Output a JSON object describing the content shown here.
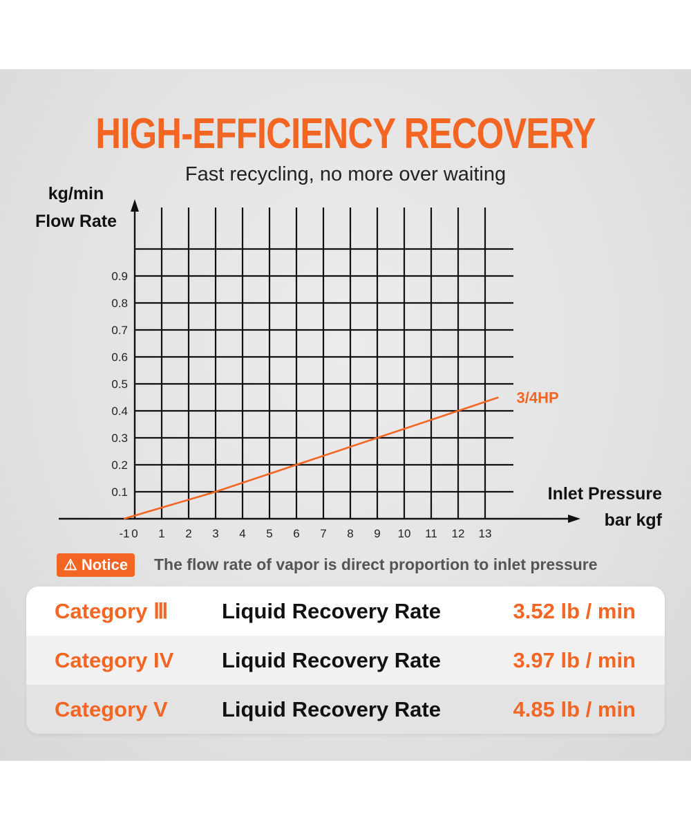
{
  "title": "HIGH-EFFICIENCY RECOVERY",
  "subtitle": "Fast recycling, no more over waiting",
  "chart_data": {
    "type": "line",
    "ylabel_unit": "kg/min",
    "ylabel": "Flow Rate",
    "xlabel": "Inlet Pressure",
    "xlabel_unit": "bar kgf",
    "xlim": [
      -1,
      14
    ],
    "ylim": [
      0,
      1.0
    ],
    "x_ticks": [
      "-1",
      "0",
      "1",
      "2",
      "3",
      "4",
      "5",
      "6",
      "7",
      "8",
      "9",
      "10",
      "11",
      "12",
      "13"
    ],
    "y_ticks": [
      "0.1",
      "0.2",
      "0.3",
      "0.4",
      "0.5",
      "0.6",
      "0.7",
      "0.8",
      "0.9"
    ],
    "grid": true,
    "series": [
      {
        "name": "3/4HP",
        "color": "#f26522",
        "points": [
          [
            -0.4,
            0
          ],
          [
            3,
            0.1
          ],
          [
            6,
            0.2
          ],
          [
            9,
            0.3
          ],
          [
            12,
            0.4
          ],
          [
            13.5,
            0.45
          ]
        ]
      }
    ]
  },
  "notice": {
    "label": "⚠ Notice",
    "text": "The flow rate of vapor is direct proportion to inlet pressure"
  },
  "table": [
    {
      "category": "Category Ⅲ",
      "metric": "Liquid Recovery Rate",
      "value": "3.52 lb / min"
    },
    {
      "category": "Category IV",
      "metric": "Liquid Recovery Rate",
      "value": "3.97 lb / min"
    },
    {
      "category": "Category V",
      "metric": "Liquid Recovery Rate",
      "value": "4.85 lb / min"
    }
  ]
}
